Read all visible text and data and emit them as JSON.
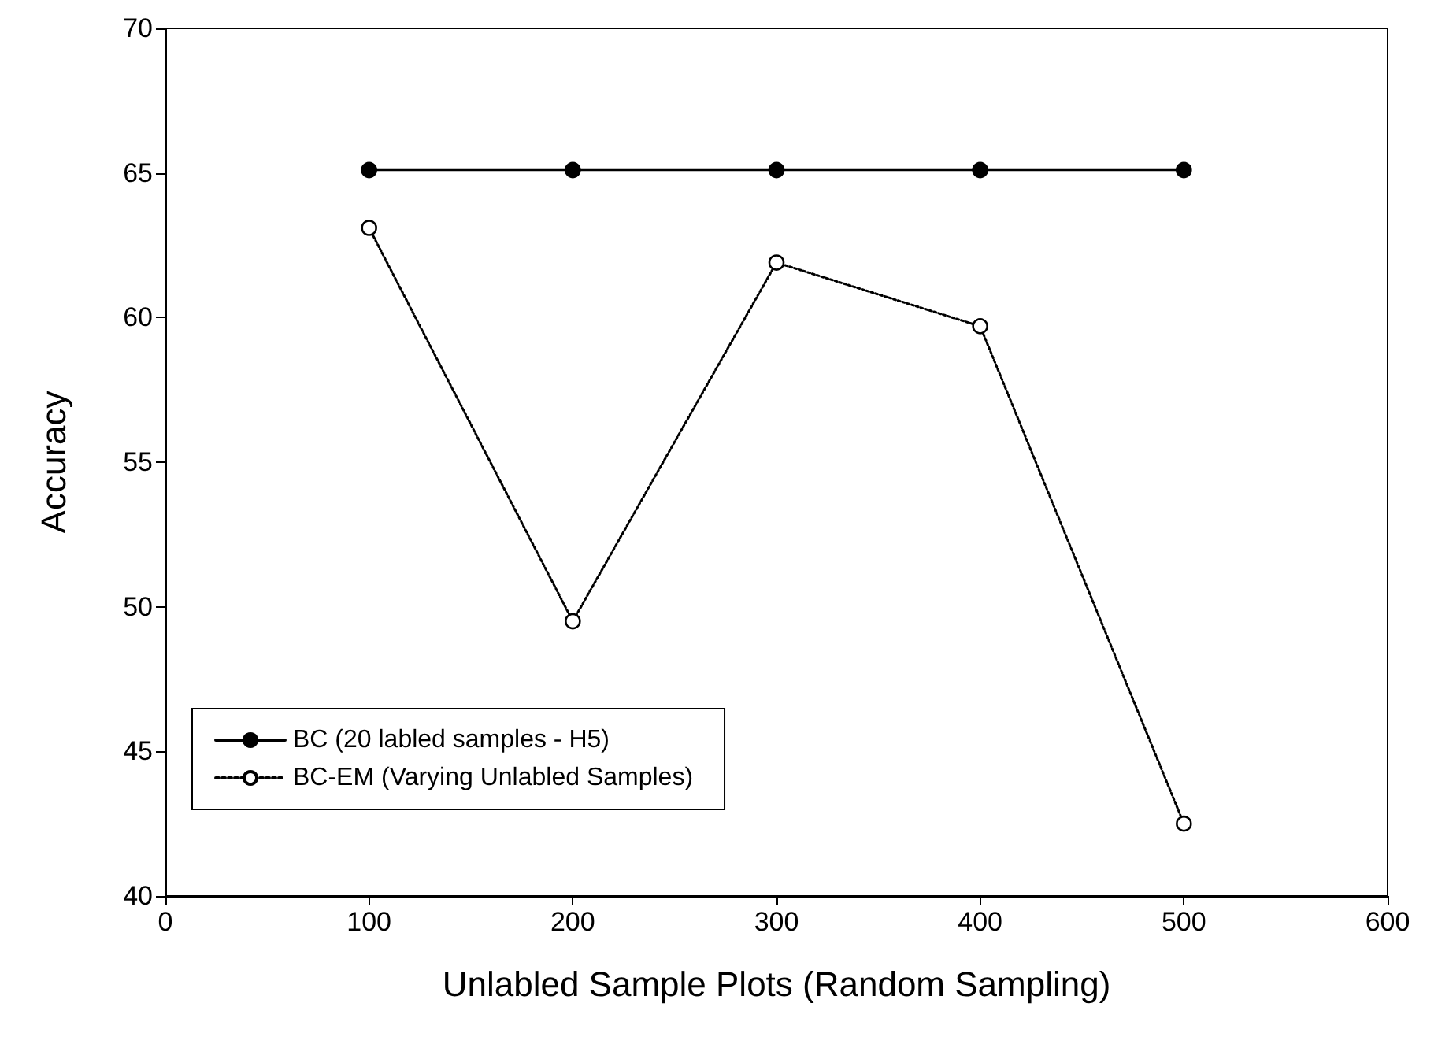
{
  "chart_data": {
    "type": "line",
    "xlabel": "Unlabled Sample Plots (Random Sampling)",
    "ylabel": "Accuracy",
    "x": [
      100,
      200,
      300,
      400,
      500
    ],
    "series": [
      {
        "name": "BC (20 labled samples - H5)",
        "color": "#000000",
        "values": [
          65.1,
          65.1,
          65.1,
          65.1,
          65.1
        ],
        "line_style": "solid"
      },
      {
        "name": "BC-EM (Varying Unlabled Samples)",
        "color": "#000000",
        "values": [
          63.1,
          49.5,
          61.9,
          59.7,
          42.5
        ],
        "line_style": "dotted"
      }
    ],
    "xlim": [
      0,
      600
    ],
    "xticks": [
      0,
      100,
      200,
      300,
      400,
      500,
      600
    ],
    "ylim": [
      40,
      70
    ],
    "yticks": [
      40,
      45,
      50,
      55,
      60,
      65,
      70
    ],
    "grid": false,
    "legend": "bottom left",
    "marker": "circle"
  }
}
